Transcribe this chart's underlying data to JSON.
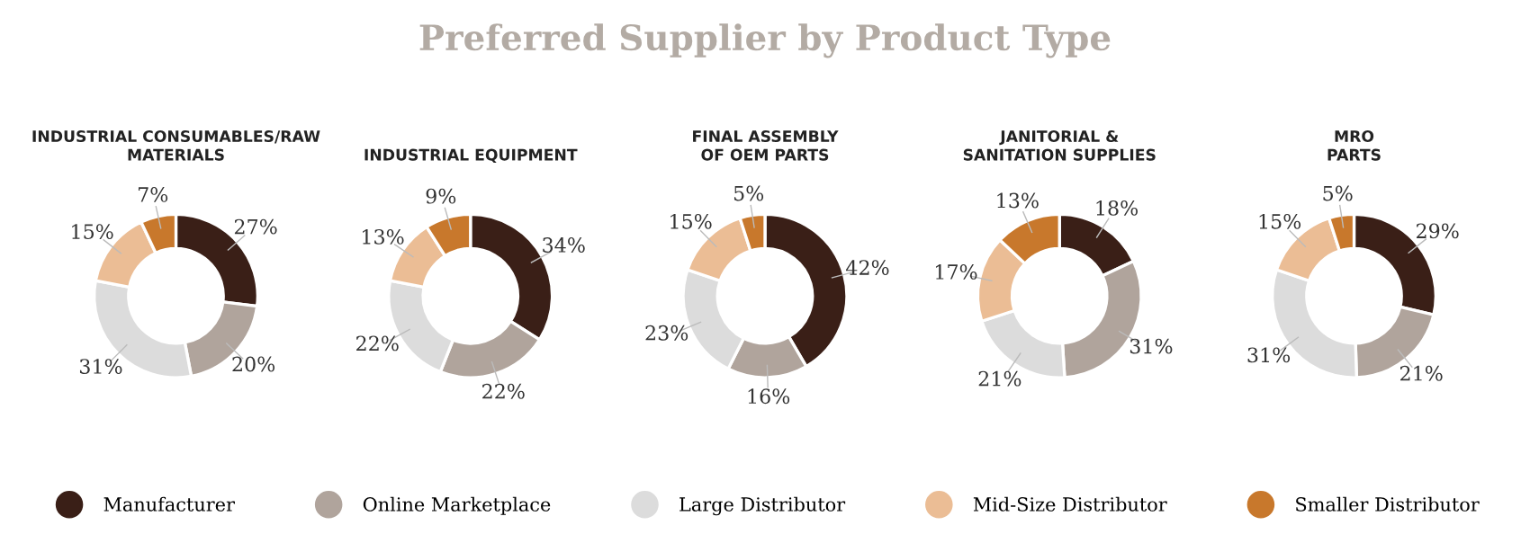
{
  "chart_data": [
    {
      "type": "other",
      "title": "Preferred Supplier by Product Type"
    },
    {
      "type": "donut",
      "subtitle": "INDUSTRIAL CONSUMABLES/RAW\nMATERIALS",
      "categories": [
        "Manufacturer",
        "Online Marketplace",
        "Large Distributor",
        "Mid-Size Distributor",
        "Smaller Distributor"
      ],
      "values": [
        27,
        20,
        31,
        15,
        7
      ],
      "value_labels": [
        "27%",
        "20%",
        "31%",
        "15%",
        "7%"
      ],
      "colors": [
        "#3a1f17",
        "#b0a49c",
        "#dcdcdc",
        "#ebbd95",
        "#c8782c"
      ],
      "legend": "bottom"
    },
    {
      "type": "donut",
      "subtitle": "INDUSTRIAL EQUIPMENT",
      "categories": [
        null,
        null,
        null,
        null,
        null
      ],
      "values": [
        34,
        22,
        22,
        13,
        9
      ],
      "value_labels": [
        "34%",
        "22%",
        "22%",
        "13%",
        "9%"
      ],
      "colors": [
        "#3a1f17",
        "#b0a49c",
        "#dcdcdc",
        "#ebbd95",
        "#c8782c"
      ]
    },
    {
      "type": "donut",
      "subtitle": "FINAL ASSEMBLY\nOF OEM PARTS",
      "categories": [
        null,
        null,
        null,
        null,
        null
      ],
      "values": [
        42,
        16,
        23,
        15,
        5
      ],
      "value_labels": [
        "42%",
        "16%",
        "23%",
        "15%",
        "5%"
      ],
      "colors": [
        "#3a1f17",
        "#b0a49c",
        "#dcdcdc",
        "#ebbd95",
        "#c8782c"
      ]
    },
    {
      "type": "donut",
      "subtitle": "JANITORIAL &\nSANITATION SUPPLIES",
      "categories": [
        null,
        null,
        null,
        null,
        null
      ],
      "values": [
        18,
        31,
        21,
        17,
        13
      ],
      "value_labels": [
        "18%",
        "31%",
        "21%",
        "17%",
        "13%"
      ],
      "colors": [
        "#3a1f17",
        "#b0a49c",
        "#dcdcdc",
        "#ebbd95",
        "#c8782c"
      ]
    },
    {
      "type": "donut",
      "subtitle": "MRO\nPARTS",
      "categories": [
        null,
        null,
        null,
        null,
        null
      ],
      "values": [
        29,
        21,
        31,
        15,
        5
      ],
      "value_labels": [
        "29%",
        "21%",
        "31%",
        "15%",
        "5%"
      ],
      "colors": [
        "#3a1f17",
        "#b0a49c",
        "#dcdcdc",
        "#ebbd95",
        "#c8782c"
      ]
    }
  ]
}
